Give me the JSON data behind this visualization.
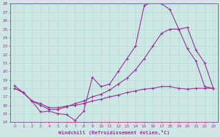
{
  "xlabel": "Windchill (Refroidissement éolien,°C)",
  "bg_color": "#cde8e4",
  "grid_color": "#b0d8d4",
  "line_color": "#993399",
  "xlim": [
    -0.5,
    23.5
  ],
  "ylim": [
    14,
    28
  ],
  "xticks": [
    0,
    1,
    2,
    3,
    4,
    5,
    6,
    7,
    8,
    9,
    10,
    11,
    12,
    13,
    14,
    15,
    16,
    17,
    18,
    19,
    20,
    21,
    22,
    23
  ],
  "yticks": [
    14,
    15,
    16,
    17,
    18,
    19,
    20,
    21,
    22,
    23,
    24,
    25,
    26,
    27,
    28
  ],
  "line1_x": [
    0,
    1,
    2,
    3,
    4,
    5,
    6,
    7,
    8,
    9,
    10,
    11,
    12,
    13,
    14,
    15,
    16,
    17,
    18,
    19,
    20,
    21,
    22,
    23
  ],
  "line1_y": [
    18.3,
    17.5,
    16.5,
    15.2,
    15.3,
    15.0,
    14.9,
    14.2,
    15.3,
    19.3,
    18.2,
    18.5,
    20.0,
    21.5,
    23.0,
    27.8,
    28.2,
    28.0,
    27.3,
    25.0,
    22.7,
    21.2,
    18.2,
    18.0
  ],
  "line2_x": [
    0,
    1,
    2,
    3,
    4,
    5,
    6,
    7,
    8,
    9,
    10,
    11,
    12,
    13,
    14,
    15,
    16,
    17,
    18,
    19,
    20,
    21,
    22,
    23
  ],
  "line2_y": [
    18.0,
    17.5,
    16.5,
    16.0,
    15.5,
    15.5,
    15.8,
    16.2,
    16.5,
    17.0,
    17.3,
    17.8,
    18.5,
    19.2,
    20.2,
    21.5,
    23.0,
    24.5,
    25.0,
    25.0,
    25.2,
    22.5,
    21.0,
    18.0
  ],
  "line3_x": [
    0,
    1,
    2,
    3,
    4,
    5,
    6,
    7,
    8,
    9,
    10,
    11,
    12,
    13,
    14,
    15,
    16,
    17,
    18,
    19,
    20,
    21,
    22,
    23
  ],
  "line3_y": [
    18.0,
    17.5,
    16.5,
    16.2,
    15.7,
    15.7,
    15.9,
    16.0,
    16.2,
    16.5,
    16.7,
    17.0,
    17.2,
    17.5,
    17.7,
    17.9,
    18.0,
    18.2,
    18.2,
    18.0,
    17.9,
    18.0,
    18.0,
    18.0
  ]
}
